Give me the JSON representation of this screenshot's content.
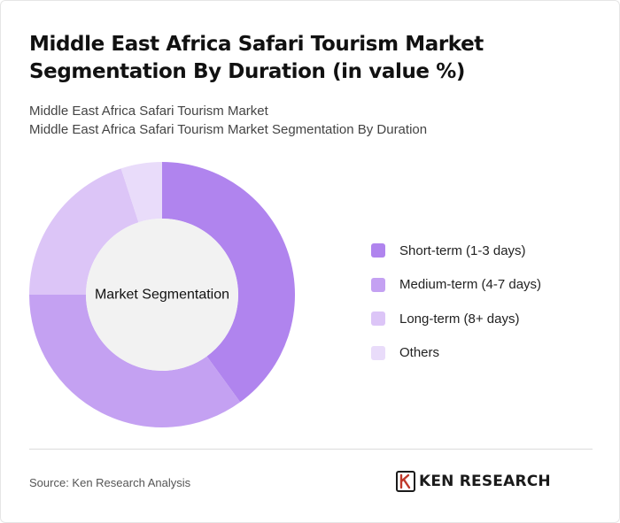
{
  "title": "Middle East Africa Safari Tourism Market Segmentation By Duration (in value %)",
  "subtitle": {
    "line1": "Middle East Africa Safari Tourism Market",
    "line2": "Middle East Africa Safari Tourism Market Segmentation By Duration"
  },
  "chart_data": {
    "type": "pie",
    "donut": true,
    "center_label": "Market Segmentation",
    "categories": [
      "Short-term (1-3 days)",
      "Medium-term (4-7 days)",
      "Long-term (8+ days)",
      "Others"
    ],
    "values": [
      40,
      35,
      20,
      5
    ],
    "colors": [
      "#b084ee",
      "#c4a1f2",
      "#dcc5f7",
      "#e9dcfa"
    ],
    "legend_position": "right"
  },
  "colors": {
    "center_fill": "#f2f2f2",
    "divider": "#dcdcdc"
  },
  "footer": {
    "source": "Source: Ken Research Analysis",
    "logo_text": "KEN RESEARCH",
    "logo_icon": "ken-research-k-icon"
  }
}
